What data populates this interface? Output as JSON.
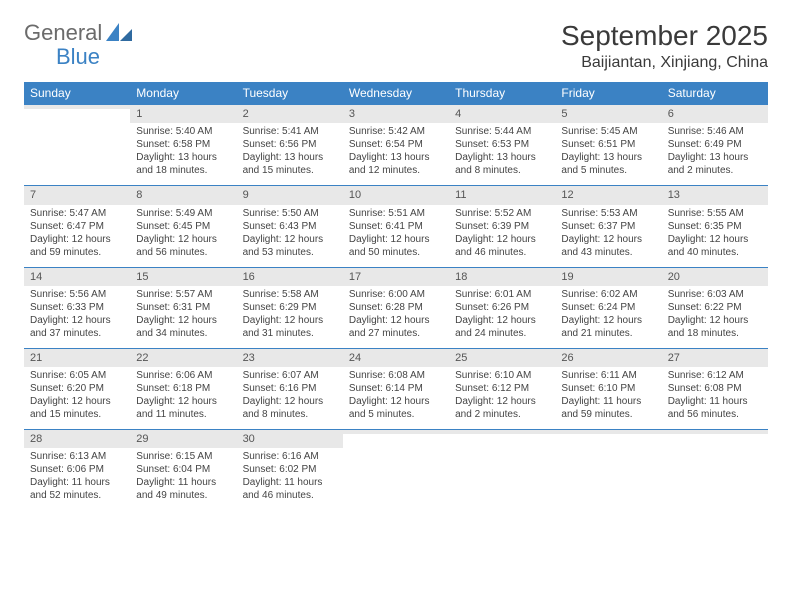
{
  "logo": {
    "text1": "General",
    "text2": "Blue"
  },
  "title": "September 2025",
  "location": "Baijiantan, Xinjiang, China",
  "colors": {
    "header_bg": "#3b82c4",
    "header_fg": "#ffffff",
    "daynum_bg": "#e8e8e8",
    "text": "#444444",
    "rule": "#3b82c4"
  },
  "weekdays": [
    "Sunday",
    "Monday",
    "Tuesday",
    "Wednesday",
    "Thursday",
    "Friday",
    "Saturday"
  ],
  "weeks": [
    [
      {
        "n": "",
        "sr": "",
        "ss": "",
        "dl": ""
      },
      {
        "n": "1",
        "sr": "Sunrise: 5:40 AM",
        "ss": "Sunset: 6:58 PM",
        "dl": "Daylight: 13 hours and 18 minutes."
      },
      {
        "n": "2",
        "sr": "Sunrise: 5:41 AM",
        "ss": "Sunset: 6:56 PM",
        "dl": "Daylight: 13 hours and 15 minutes."
      },
      {
        "n": "3",
        "sr": "Sunrise: 5:42 AM",
        "ss": "Sunset: 6:54 PM",
        "dl": "Daylight: 13 hours and 12 minutes."
      },
      {
        "n": "4",
        "sr": "Sunrise: 5:44 AM",
        "ss": "Sunset: 6:53 PM",
        "dl": "Daylight: 13 hours and 8 minutes."
      },
      {
        "n": "5",
        "sr": "Sunrise: 5:45 AM",
        "ss": "Sunset: 6:51 PM",
        "dl": "Daylight: 13 hours and 5 minutes."
      },
      {
        "n": "6",
        "sr": "Sunrise: 5:46 AM",
        "ss": "Sunset: 6:49 PM",
        "dl": "Daylight: 13 hours and 2 minutes."
      }
    ],
    [
      {
        "n": "7",
        "sr": "Sunrise: 5:47 AM",
        "ss": "Sunset: 6:47 PM",
        "dl": "Daylight: 12 hours and 59 minutes."
      },
      {
        "n": "8",
        "sr": "Sunrise: 5:49 AM",
        "ss": "Sunset: 6:45 PM",
        "dl": "Daylight: 12 hours and 56 minutes."
      },
      {
        "n": "9",
        "sr": "Sunrise: 5:50 AM",
        "ss": "Sunset: 6:43 PM",
        "dl": "Daylight: 12 hours and 53 minutes."
      },
      {
        "n": "10",
        "sr": "Sunrise: 5:51 AM",
        "ss": "Sunset: 6:41 PM",
        "dl": "Daylight: 12 hours and 50 minutes."
      },
      {
        "n": "11",
        "sr": "Sunrise: 5:52 AM",
        "ss": "Sunset: 6:39 PM",
        "dl": "Daylight: 12 hours and 46 minutes."
      },
      {
        "n": "12",
        "sr": "Sunrise: 5:53 AM",
        "ss": "Sunset: 6:37 PM",
        "dl": "Daylight: 12 hours and 43 minutes."
      },
      {
        "n": "13",
        "sr": "Sunrise: 5:55 AM",
        "ss": "Sunset: 6:35 PM",
        "dl": "Daylight: 12 hours and 40 minutes."
      }
    ],
    [
      {
        "n": "14",
        "sr": "Sunrise: 5:56 AM",
        "ss": "Sunset: 6:33 PM",
        "dl": "Daylight: 12 hours and 37 minutes."
      },
      {
        "n": "15",
        "sr": "Sunrise: 5:57 AM",
        "ss": "Sunset: 6:31 PM",
        "dl": "Daylight: 12 hours and 34 minutes."
      },
      {
        "n": "16",
        "sr": "Sunrise: 5:58 AM",
        "ss": "Sunset: 6:29 PM",
        "dl": "Daylight: 12 hours and 31 minutes."
      },
      {
        "n": "17",
        "sr": "Sunrise: 6:00 AM",
        "ss": "Sunset: 6:28 PM",
        "dl": "Daylight: 12 hours and 27 minutes."
      },
      {
        "n": "18",
        "sr": "Sunrise: 6:01 AM",
        "ss": "Sunset: 6:26 PM",
        "dl": "Daylight: 12 hours and 24 minutes."
      },
      {
        "n": "19",
        "sr": "Sunrise: 6:02 AM",
        "ss": "Sunset: 6:24 PM",
        "dl": "Daylight: 12 hours and 21 minutes."
      },
      {
        "n": "20",
        "sr": "Sunrise: 6:03 AM",
        "ss": "Sunset: 6:22 PM",
        "dl": "Daylight: 12 hours and 18 minutes."
      }
    ],
    [
      {
        "n": "21",
        "sr": "Sunrise: 6:05 AM",
        "ss": "Sunset: 6:20 PM",
        "dl": "Daylight: 12 hours and 15 minutes."
      },
      {
        "n": "22",
        "sr": "Sunrise: 6:06 AM",
        "ss": "Sunset: 6:18 PM",
        "dl": "Daylight: 12 hours and 11 minutes."
      },
      {
        "n": "23",
        "sr": "Sunrise: 6:07 AM",
        "ss": "Sunset: 6:16 PM",
        "dl": "Daylight: 12 hours and 8 minutes."
      },
      {
        "n": "24",
        "sr": "Sunrise: 6:08 AM",
        "ss": "Sunset: 6:14 PM",
        "dl": "Daylight: 12 hours and 5 minutes."
      },
      {
        "n": "25",
        "sr": "Sunrise: 6:10 AM",
        "ss": "Sunset: 6:12 PM",
        "dl": "Daylight: 12 hours and 2 minutes."
      },
      {
        "n": "26",
        "sr": "Sunrise: 6:11 AM",
        "ss": "Sunset: 6:10 PM",
        "dl": "Daylight: 11 hours and 59 minutes."
      },
      {
        "n": "27",
        "sr": "Sunrise: 6:12 AM",
        "ss": "Sunset: 6:08 PM",
        "dl": "Daylight: 11 hours and 56 minutes."
      }
    ],
    [
      {
        "n": "28",
        "sr": "Sunrise: 6:13 AM",
        "ss": "Sunset: 6:06 PM",
        "dl": "Daylight: 11 hours and 52 minutes."
      },
      {
        "n": "29",
        "sr": "Sunrise: 6:15 AM",
        "ss": "Sunset: 6:04 PM",
        "dl": "Daylight: 11 hours and 49 minutes."
      },
      {
        "n": "30",
        "sr": "Sunrise: 6:16 AM",
        "ss": "Sunset: 6:02 PM",
        "dl": "Daylight: 11 hours and 46 minutes."
      },
      {
        "n": "",
        "sr": "",
        "ss": "",
        "dl": ""
      },
      {
        "n": "",
        "sr": "",
        "ss": "",
        "dl": ""
      },
      {
        "n": "",
        "sr": "",
        "ss": "",
        "dl": ""
      },
      {
        "n": "",
        "sr": "",
        "ss": "",
        "dl": ""
      }
    ]
  ]
}
